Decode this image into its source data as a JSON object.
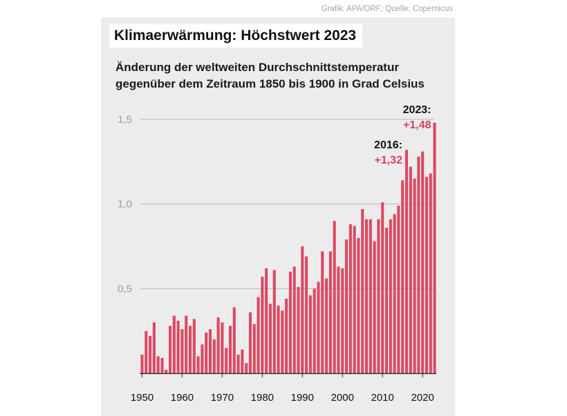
{
  "credit": "Grafik: APA/ORF; Quelle: Copernicus",
  "header": {
    "title": "Klimaerwärmung: Höchstwert 2023",
    "subtitle": "Änderung der weltweiten Durchschnittstemperatur gegenüber dem Zeitraum 1850 bis 1900 in Grad Celsius"
  },
  "annotations": {
    "y2016": {
      "year": "2016:",
      "value": "+1,32"
    },
    "y2023": {
      "year": "2023:",
      "value": "+1,48"
    }
  },
  "chart_data": {
    "type": "bar",
    "x": [
      1950,
      1951,
      1952,
      1953,
      1954,
      1955,
      1956,
      1957,
      1958,
      1959,
      1960,
      1961,
      1962,
      1963,
      1964,
      1965,
      1966,
      1967,
      1968,
      1969,
      1970,
      1971,
      1972,
      1973,
      1974,
      1975,
      1976,
      1977,
      1978,
      1979,
      1980,
      1981,
      1982,
      1983,
      1984,
      1985,
      1986,
      1987,
      1988,
      1989,
      1990,
      1991,
      1992,
      1993,
      1994,
      1995,
      1996,
      1997,
      1998,
      1999,
      2000,
      2001,
      2002,
      2003,
      2004,
      2005,
      2006,
      2007,
      2008,
      2009,
      2010,
      2011,
      2012,
      2013,
      2014,
      2015,
      2016,
      2017,
      2018,
      2019,
      2020,
      2021,
      2022,
      2023
    ],
    "values": [
      0.11,
      0.25,
      0.22,
      0.3,
      0.1,
      0.09,
      0.02,
      0.28,
      0.34,
      0.31,
      0.26,
      0.34,
      0.28,
      0.32,
      0.1,
      0.17,
      0.24,
      0.26,
      0.2,
      0.33,
      0.3,
      0.15,
      0.28,
      0.39,
      0.11,
      0.14,
      0.06,
      0.36,
      0.29,
      0.45,
      0.57,
      0.62,
      0.41,
      0.61,
      0.4,
      0.37,
      0.44,
      0.6,
      0.63,
      0.51,
      0.75,
      0.69,
      0.46,
      0.5,
      0.54,
      0.72,
      0.56,
      0.72,
      0.9,
      0.63,
      0.62,
      0.79,
      0.88,
      0.87,
      0.8,
      0.97,
      0.91,
      0.91,
      0.78,
      0.91,
      1.01,
      0.86,
      0.91,
      0.94,
      0.99,
      1.14,
      1.32,
      1.22,
      1.15,
      1.28,
      1.31,
      1.16,
      1.18,
      1.48
    ],
    "ylim": [
      0,
      1.5
    ],
    "yticks": [
      0.5,
      1.0,
      1.5
    ],
    "ytick_labels": [
      "0,5",
      "1,0",
      "1,5"
    ],
    "xticks": [
      1950,
      1960,
      1970,
      1980,
      1990,
      2000,
      2010,
      2020
    ],
    "xtick_labels": [
      "1950",
      "1960",
      "1970",
      "1980",
      "1990",
      "2000",
      "2010",
      "2020"
    ],
    "grid": true,
    "colors": {
      "bar": "#dc4a63",
      "grid": "#b8b8b8",
      "axis": "#222222",
      "tick_label_y": "#9a9a9a"
    }
  }
}
